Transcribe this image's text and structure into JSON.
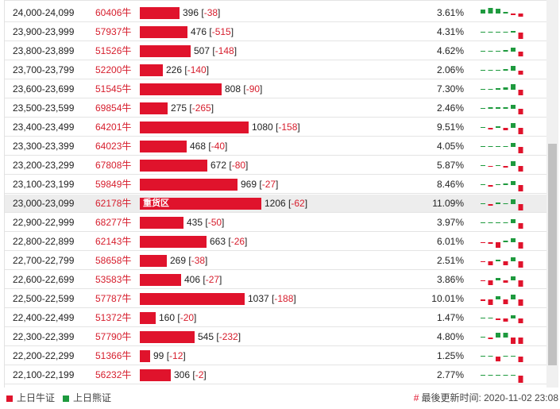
{
  "colors": {
    "bull": "#e0132c",
    "bear": "#1e9a3e",
    "qty_text": "#d61d2c"
  },
  "rows": [
    {
      "range": "24,000-24,099",
      "qty": "60406牛",
      "bar_value": 396,
      "change": "-38",
      "pct": "3.61%",
      "spark": [
        0.5,
        0.7,
        0.6,
        0.2,
        -0.2,
        -0.4
      ]
    },
    {
      "range": "23,900-23,999",
      "qty": "57937牛",
      "bar_value": 476,
      "change": "-515",
      "pct": "4.31%",
      "spark": [
        0,
        0,
        0.1,
        0.1,
        0.2,
        -0.8
      ]
    },
    {
      "range": "23,800-23,899",
      "qty": "51526牛",
      "bar_value": 507,
      "change": "-148",
      "pct": "4.62%",
      "spark": [
        0,
        0,
        0.1,
        0.2,
        0.5,
        -0.6
      ]
    },
    {
      "range": "23,700-23,799",
      "qty": "52200牛",
      "bar_value": 226,
      "change": "-140",
      "pct": "2.06%",
      "spark": [
        0,
        0,
        0.1,
        0.2,
        0.6,
        -0.5
      ]
    },
    {
      "range": "23,600-23,699",
      "qty": "51545牛",
      "bar_value": 808,
      "change": "-90",
      "pct": "7.30%",
      "spark": [
        0.1,
        0.1,
        0.2,
        0.3,
        0.7,
        -0.7
      ]
    },
    {
      "range": "23,500-23,599",
      "qty": "69854牛",
      "bar_value": 275,
      "change": "-265",
      "pct": "2.46%",
      "spark": [
        0.1,
        0.2,
        0.2,
        0.2,
        0.5,
        -0.7
      ]
    },
    {
      "range": "23,400-23,499",
      "qty": "64201牛",
      "bar_value": 1080,
      "change": "-158",
      "pct": "9.51%",
      "spark": [
        0,
        -0.2,
        0.2,
        -0.3,
        0.6,
        -0.8
      ]
    },
    {
      "range": "23,300-23,399",
      "qty": "64023牛",
      "bar_value": 468,
      "change": "-40",
      "pct": "4.05%",
      "spark": [
        0,
        0.1,
        0.1,
        0.1,
        0.5,
        -0.8
      ]
    },
    {
      "range": "23,200-23,299",
      "qty": "67808牛",
      "bar_value": 672,
      "change": "-80",
      "pct": "5.87%",
      "spark": [
        0,
        -0.1,
        0.1,
        -0.2,
        0.6,
        -0.7
      ]
    },
    {
      "range": "23,100-23,199",
      "qty": "59849牛",
      "bar_value": 969,
      "change": "-27",
      "pct": "8.46%",
      "spark": [
        0,
        -0.2,
        0.1,
        0.2,
        0.5,
        -0.8
      ]
    },
    {
      "range": "23,000-23,099",
      "qty": "62178牛",
      "bar_value": 1206,
      "change": "-62",
      "pct": "11.09%",
      "bar_label": "重货区",
      "highlight": true,
      "spark": [
        0,
        -0.2,
        0.2,
        0.1,
        0.6,
        -0.8
      ]
    },
    {
      "range": "22,900-22,999",
      "qty": "68277牛",
      "bar_value": 435,
      "change": "-50",
      "pct": "3.97%",
      "spark": [
        0,
        0,
        0.1,
        0.1,
        0.5,
        -0.7
      ]
    },
    {
      "range": "22,800-22,899",
      "qty": "62143牛",
      "bar_value": 663,
      "change": "-26",
      "pct": "6.01%",
      "spark": [
        -0.1,
        -0.2,
        -0.7,
        0.2,
        0.5,
        -0.8
      ]
    },
    {
      "range": "22,700-22,799",
      "qty": "58658牛",
      "bar_value": 269,
      "change": "-38",
      "pct": "2.51%",
      "spark": [
        -0.1,
        -0.5,
        0.2,
        -0.5,
        0.5,
        -0.8
      ]
    },
    {
      "range": "22,600-22,699",
      "qty": "53583牛",
      "bar_value": 406,
      "change": "-27",
      "pct": "3.86%",
      "spark": [
        -0.1,
        -0.6,
        0.3,
        -0.3,
        0.5,
        -0.8
      ]
    },
    {
      "range": "22,500-22,599",
      "qty": "57787牛",
      "bar_value": 1037,
      "change": "-188",
      "pct": "10.01%",
      "spark": [
        -0.2,
        -0.7,
        0.4,
        -0.6,
        0.6,
        -0.8
      ]
    },
    {
      "range": "22,400-22,499",
      "qty": "51372牛",
      "bar_value": 160,
      "change": "-20",
      "pct": "1.47%",
      "spark": [
        0,
        0,
        -0.2,
        -0.4,
        0.4,
        -0.6
      ]
    },
    {
      "range": "22,300-22,399",
      "qty": "57790牛",
      "bar_value": 545,
      "change": "-232",
      "pct": "4.80%",
      "spark": [
        0,
        -0.2,
        0.6,
        0.6,
        -0.8,
        -0.8
      ]
    },
    {
      "range": "22,200-22,299",
      "qty": "51366牛",
      "bar_value": 99,
      "change": "-12",
      "pct": "1.25%",
      "spark": [
        0,
        0,
        -0.6,
        0,
        0,
        -0.7
      ]
    },
    {
      "range": "22,100-22,199",
      "qty": "56232牛",
      "bar_value": 306,
      "change": "-2",
      "pct": "2.77%",
      "spark": [
        0,
        0,
        0,
        0,
        0,
        -0.9
      ]
    }
  ],
  "legend": {
    "bull_label": "上日牛证",
    "bear_label": "上日熊证"
  },
  "update": {
    "label": "最後更新时间: 2020-11-02 23:08"
  }
}
